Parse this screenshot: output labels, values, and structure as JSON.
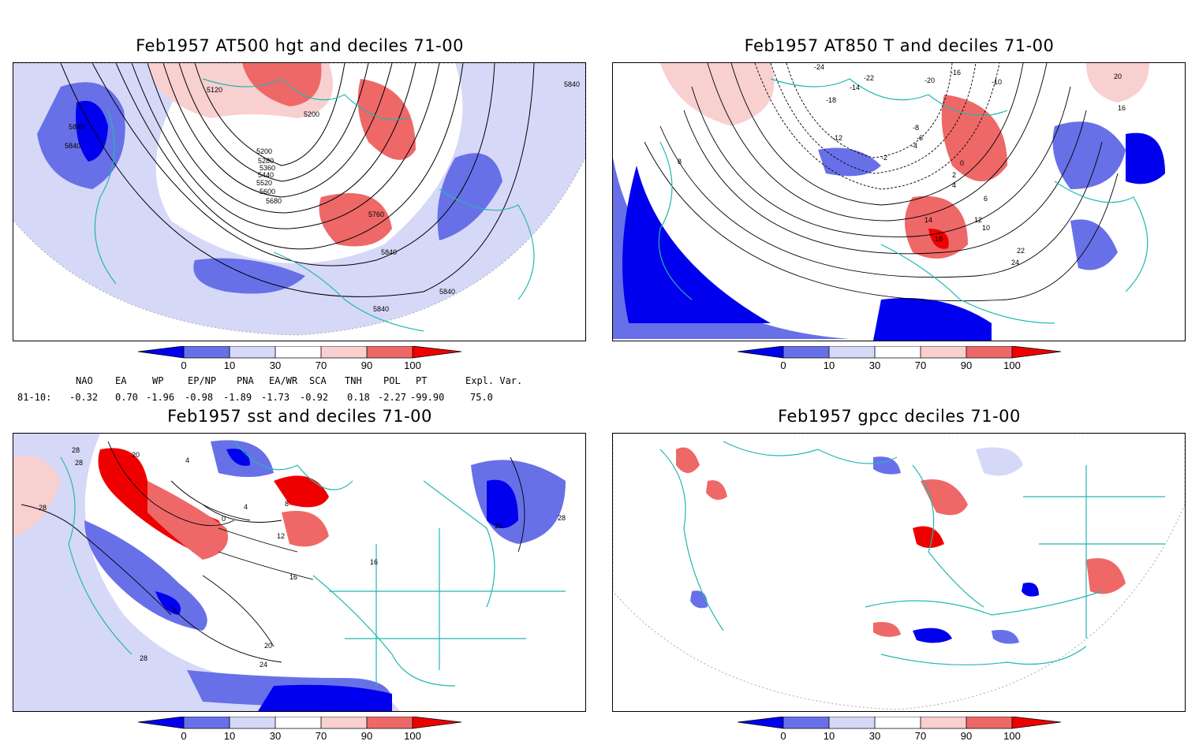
{
  "panels": [
    {
      "id": "p1",
      "title": "Feb1957 AT500 hgt and deciles 71-00",
      "contour_labels": [
        "5120",
        "5200",
        "5200",
        "5280",
        "5360",
        "5440",
        "5520",
        "5600",
        "5680",
        "5760",
        "5840",
        "5840",
        "5840",
        "5840",
        "5840",
        "5840"
      ]
    },
    {
      "id": "p2",
      "title": "Feb1957 AT850 T and deciles 71-00",
      "contour_labels": [
        "-24",
        "-22",
        "-20",
        "-18",
        "-16",
        "-14",
        "-12",
        "-10",
        "-8",
        "-6",
        "-4",
        "-2",
        "0",
        "2",
        "4",
        "6",
        "8",
        "10",
        "12",
        "14",
        "16",
        "18",
        "20",
        "22",
        "24"
      ]
    },
    {
      "id": "p3",
      "title": "Feb1957 sst and deciles 71-00",
      "contour_labels": [
        "28",
        "28",
        "20",
        "4",
        "0",
        "4",
        "8",
        "12",
        "16",
        "16",
        "20",
        "24",
        "28",
        "28",
        "24",
        "28"
      ]
    },
    {
      "id": "p4",
      "title": "Feb1957 gpcc deciles 71-00",
      "contour_labels": []
    }
  ],
  "colorbar": {
    "ticks": [
      "0",
      "10",
      "30",
      "70",
      "90",
      "100"
    ],
    "colors": [
      "#0000ee",
      "#6870e8",
      "#d6d8f8",
      "#ffffff",
      "#f8d0d0",
      "#ee6868",
      "#ee0000"
    ]
  },
  "indices": {
    "headers": [
      "NAO",
      "EA",
      "WP",
      "EP/NP",
      "PNA",
      "EA/WR",
      "SCA",
      "TNH",
      "POL",
      "PT",
      "Expl. Var."
    ],
    "row_label": "81-10:",
    "values": [
      "-0.32",
      "0.70",
      "-1.96",
      "-0.98",
      "-1.89",
      "-1.73",
      "-0.92",
      "0.18",
      "-2.27",
      "-99.90",
      "75.0"
    ]
  }
}
